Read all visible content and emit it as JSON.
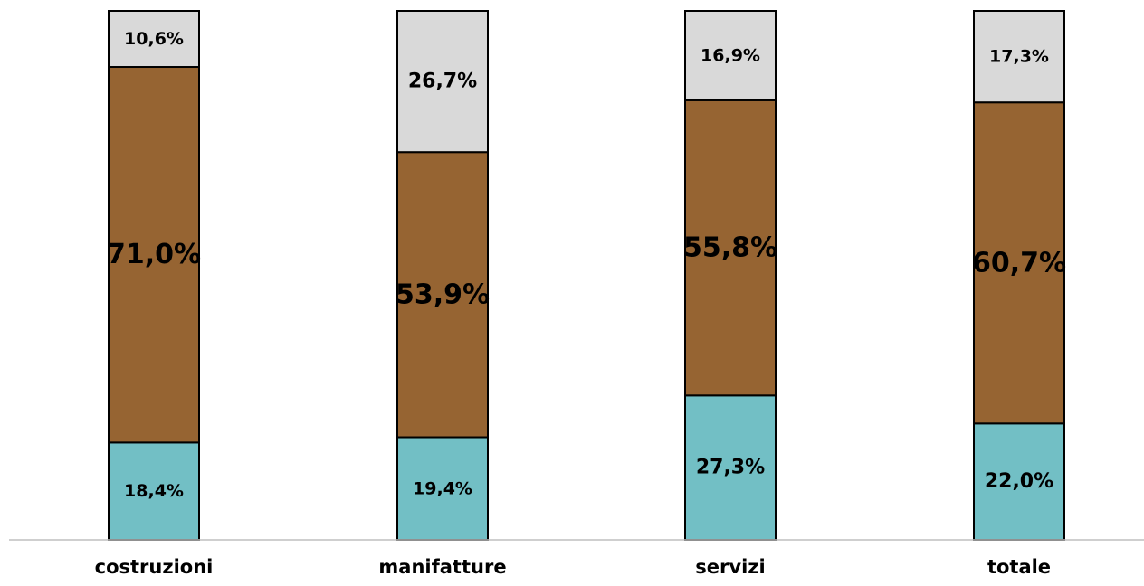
{
  "chart_data": {
    "type": "bar",
    "stacked": true,
    "normalized": true,
    "categories": [
      "costruzioni",
      "manifatture",
      "servizi",
      "totale"
    ],
    "series": [
      {
        "color": "#72BFC5",
        "values": [
          18.4,
          19.4,
          27.3,
          22.0
        ],
        "labels": [
          "18,4%",
          "19,4%",
          "27,3%",
          "22,0%"
        ]
      },
      {
        "color": "#966432",
        "values": [
          71.0,
          53.9,
          55.8,
          60.7
        ],
        "labels": [
          "71,0%",
          "53,9%",
          "55,8%",
          "60,7%"
        ]
      },
      {
        "color": "#D9D9D9",
        "values": [
          10.6,
          26.7,
          16.9,
          17.3
        ],
        "labels": [
          "10,6%",
          "26,7%",
          "16,9%",
          "17,3%"
        ]
      }
    ],
    "ylim": [
      0,
      100
    ],
    "title": "",
    "xlabel": "",
    "ylabel": "",
    "legend": "none",
    "grid": false,
    "axis_color": "#BFBFBF",
    "bar_outline_color": "#000000"
  }
}
